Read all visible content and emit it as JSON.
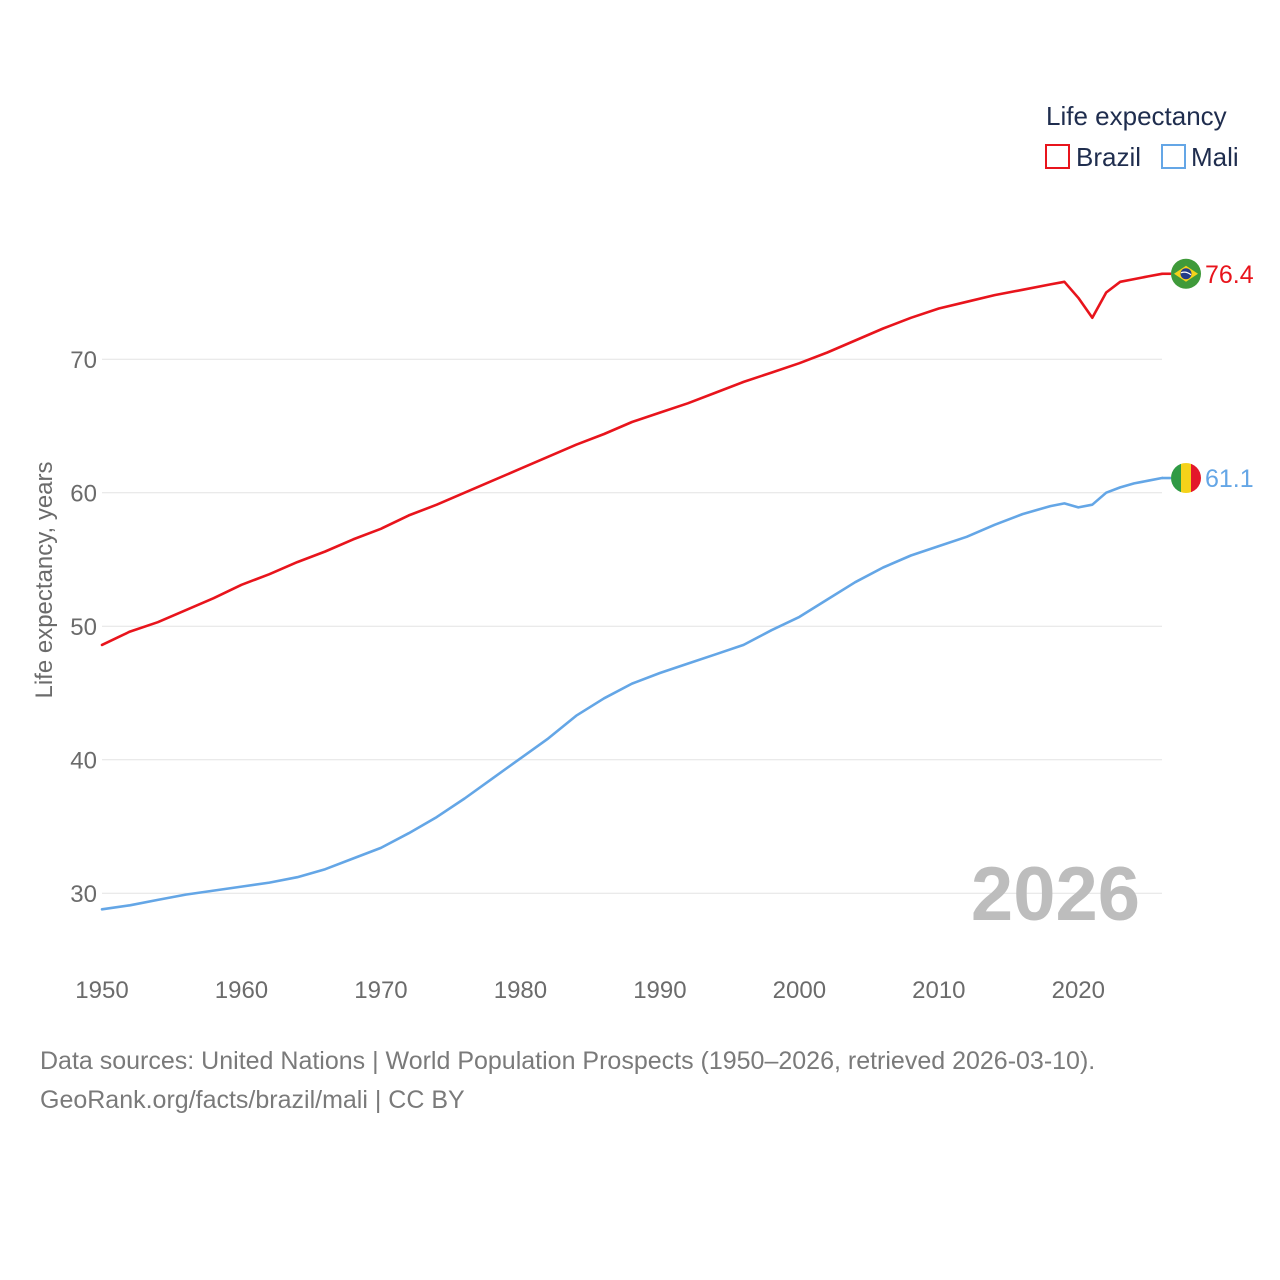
{
  "chart_data": {
    "type": "line",
    "title": "Life expectancy",
    "ylabel": "Life expectancy, years",
    "xlabel": "",
    "xlim": [
      1950,
      2026
    ],
    "ylim": [
      25,
      82
    ],
    "x_ticks": [
      1950,
      1960,
      1970,
      1980,
      1990,
      2000,
      2010,
      2020
    ],
    "y_ticks": [
      30,
      40,
      50,
      60,
      70
    ],
    "current_year": "2026",
    "legend_position": "top-right",
    "series": [
      {
        "name": "Brazil",
        "color": "#e8141c",
        "end_label": "76.4",
        "flag": "brazil-flag",
        "points": [
          [
            1950,
            48.6
          ],
          [
            1952,
            49.6
          ],
          [
            1954,
            50.3
          ],
          [
            1956,
            51.2
          ],
          [
            1958,
            52.1
          ],
          [
            1960,
            53.1
          ],
          [
            1962,
            53.9
          ],
          [
            1964,
            54.8
          ],
          [
            1966,
            55.6
          ],
          [
            1968,
            56.5
          ],
          [
            1970,
            57.3
          ],
          [
            1972,
            58.3
          ],
          [
            1974,
            59.1
          ],
          [
            1976,
            60.0
          ],
          [
            1978,
            60.9
          ],
          [
            1980,
            61.8
          ],
          [
            1982,
            62.7
          ],
          [
            1984,
            63.6
          ],
          [
            1986,
            64.4
          ],
          [
            1988,
            65.3
          ],
          [
            1990,
            66.0
          ],
          [
            1992,
            66.7
          ],
          [
            1994,
            67.5
          ],
          [
            1996,
            68.3
          ],
          [
            1998,
            69.0
          ],
          [
            2000,
            69.7
          ],
          [
            2002,
            70.5
          ],
          [
            2004,
            71.4
          ],
          [
            2006,
            72.3
          ],
          [
            2008,
            73.1
          ],
          [
            2010,
            73.8
          ],
          [
            2012,
            74.3
          ],
          [
            2014,
            74.8
          ],
          [
            2016,
            75.2
          ],
          [
            2018,
            75.6
          ],
          [
            2019,
            75.8
          ],
          [
            2020,
            74.6
          ],
          [
            2021,
            73.1
          ],
          [
            2022,
            75.0
          ],
          [
            2023,
            75.8
          ],
          [
            2024,
            76.0
          ],
          [
            2025,
            76.2
          ],
          [
            2026,
            76.4
          ]
        ]
      },
      {
        "name": "Mali",
        "color": "#64a6e6",
        "end_label": "61.1",
        "flag": "mali-flag",
        "points": [
          [
            1950,
            28.8
          ],
          [
            1952,
            29.1
          ],
          [
            1954,
            29.5
          ],
          [
            1956,
            29.9
          ],
          [
            1958,
            30.2
          ],
          [
            1960,
            30.5
          ],
          [
            1962,
            30.8
          ],
          [
            1964,
            31.2
          ],
          [
            1966,
            31.8
          ],
          [
            1968,
            32.6
          ],
          [
            1970,
            33.4
          ],
          [
            1972,
            34.5
          ],
          [
            1974,
            35.7
          ],
          [
            1976,
            37.1
          ],
          [
            1978,
            38.6
          ],
          [
            1980,
            40.1
          ],
          [
            1982,
            41.6
          ],
          [
            1984,
            43.3
          ],
          [
            1986,
            44.6
          ],
          [
            1988,
            45.7
          ],
          [
            1990,
            46.5
          ],
          [
            1992,
            47.2
          ],
          [
            1994,
            47.9
          ],
          [
            1996,
            48.6
          ],
          [
            1998,
            49.7
          ],
          [
            2000,
            50.7
          ],
          [
            2002,
            52.0
          ],
          [
            2004,
            53.3
          ],
          [
            2006,
            54.4
          ],
          [
            2008,
            55.3
          ],
          [
            2010,
            56.0
          ],
          [
            2012,
            56.7
          ],
          [
            2014,
            57.6
          ],
          [
            2016,
            58.4
          ],
          [
            2018,
            59.0
          ],
          [
            2019,
            59.2
          ],
          [
            2020,
            58.9
          ],
          [
            2021,
            59.1
          ],
          [
            2022,
            60.0
          ],
          [
            2023,
            60.4
          ],
          [
            2024,
            60.7
          ],
          [
            2025,
            60.9
          ],
          [
            2026,
            61.1
          ]
        ]
      }
    ]
  },
  "footer": {
    "source_line": "Data sources: United Nations | World Population Prospects (1950–2026, retrieved 2026-03-10).",
    "credit_line": "GeoRank.org/facts/brazil/mali | CC BY"
  }
}
